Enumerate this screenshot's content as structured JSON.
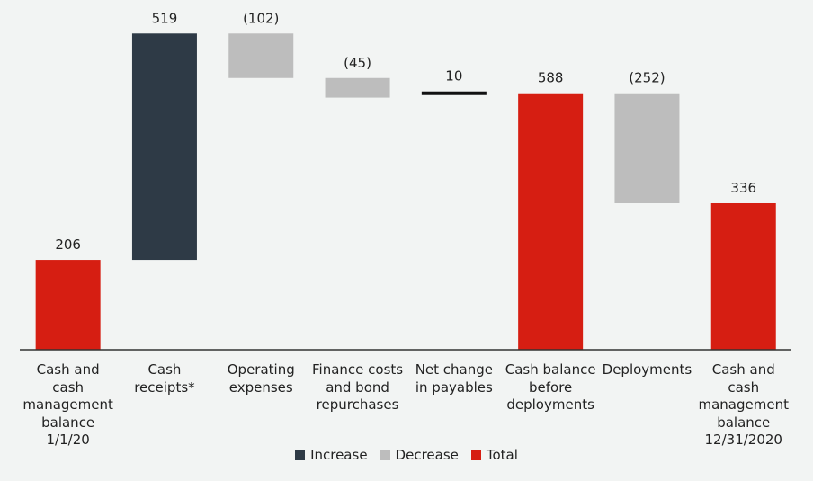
{
  "chart_data": {
    "type": "bar",
    "subtype": "waterfall",
    "categories": [
      [
        "Cash and cash",
        "management",
        "balance",
        "1/1/20"
      ],
      [
        "Cash",
        "receipts*"
      ],
      [
        "Operating",
        "expenses"
      ],
      [
        "Finance costs",
        "and bond",
        "repurchases"
      ],
      [
        "Net change",
        "in payables"
      ],
      [
        "Cash balance",
        "before",
        "deployments"
      ],
      [
        "Deployments"
      ],
      [
        "Cash and cash",
        "management",
        "balance",
        "12/31/2020"
      ]
    ],
    "values": [
      206,
      519,
      -102,
      -45,
      10,
      588,
      -252,
      336
    ],
    "kinds": [
      "total",
      "increase",
      "decrease",
      "decrease",
      "increase",
      "total",
      "decrease",
      "total"
    ],
    "data_labels": [
      "206",
      "519",
      "(102)",
      "(45)",
      "10",
      "588",
      "(252)",
      "336"
    ],
    "ylim": [
      0,
      740
    ],
    "title": "",
    "xlabel": "",
    "ylabel": "",
    "legend": [
      {
        "name": "Increase",
        "color": "#2e3a46"
      },
      {
        "name": "Decrease",
        "color": "#bdbdbd"
      },
      {
        "name": "Total",
        "color": "#d61e12"
      }
    ],
    "colors": {
      "increase": "#2e3a46",
      "decrease": "#bdbdbd",
      "total": "#d61e12",
      "net": "#111111"
    },
    "legend_position": "bottom-center"
  }
}
